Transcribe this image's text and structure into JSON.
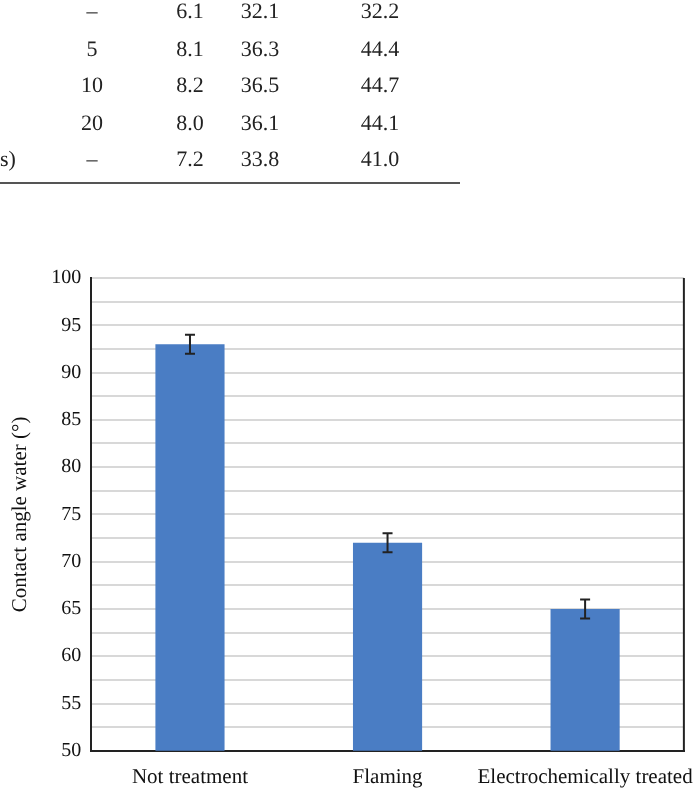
{
  "chart_data": {
    "type": "bar",
    "ylabel": "Contact angle water (°)",
    "categories": [
      "Not treatment",
      "Flaming",
      "Electrochemically treated"
    ],
    "values": [
      93,
      72,
      65
    ],
    "errors": [
      1,
      1,
      1
    ],
    "color": "#4a7dc4",
    "ylim": [
      50,
      100
    ],
    "yticks": [
      50,
      {
        "value": 52.5,
        "label": null
      },
      55,
      {
        "value": 57.5,
        "label": null
      },
      60,
      {
        "value": 62.5,
        "label": null
      },
      65,
      {
        "value": 67.5,
        "label": null
      },
      70,
      {
        "value": 72.5,
        "label": null
      },
      75,
      {
        "value": 77.5,
        "label": null
      },
      80,
      {
        "value": 82.5,
        "label": null
      },
      85,
      {
        "value": 87.5,
        "label": null
      },
      90,
      {
        "value": 92.5,
        "label": null
      },
      95,
      {
        "value": 97.5,
        "label": null
      },
      100
    ],
    "grid": "y",
    "annotations": [
      "– 6.1 32.1 32.2",
      "5 8.1 36.3 44.4",
      "10 8.2 36.5 44.7",
      "20 8.0 36.1 44.1",
      "s) – 7.2 33.8 41.0"
    ]
  }
}
